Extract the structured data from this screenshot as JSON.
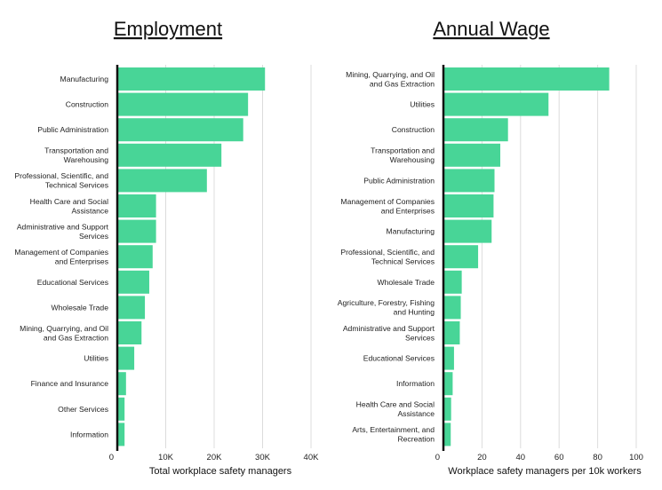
{
  "colors": {
    "bar": "#48d597",
    "grid": "#dcdcdc",
    "axis": "#111111"
  },
  "chart_data": [
    {
      "type": "bar",
      "orientation": "horizontal",
      "title": "Employment",
      "xlabel": "Total workplace safety managers",
      "xlim": [
        0,
        40000
      ],
      "ticks": [
        0,
        10000,
        20000,
        30000,
        40000
      ],
      "tick_labels": [
        "0",
        "10K",
        "20K",
        "30K",
        "40K"
      ],
      "grid": true,
      "categories": [
        [
          "Manufacturing"
        ],
        [
          "Construction"
        ],
        [
          "Public Administration"
        ],
        [
          "Transportation and",
          "Warehousing"
        ],
        [
          "Professional, Scientific, and",
          "Technical Services"
        ],
        [
          "Health Care and Social",
          "Assistance"
        ],
        [
          "Administrative and Support",
          "Services"
        ],
        [
          "Management of Companies",
          "and Enterprises"
        ],
        [
          "Educational Services"
        ],
        [
          "Wholesale Trade"
        ],
        [
          "Mining, Quarrying, and Oil",
          "and Gas Extraction"
        ],
        [
          "Utilities"
        ],
        [
          "Finance and Insurance"
        ],
        [
          "Other Services"
        ],
        [
          "Information"
        ]
      ],
      "values": [
        30500,
        27000,
        26000,
        21500,
        18500,
        8000,
        8000,
        7300,
        6600,
        5700,
        5000,
        3500,
        1800,
        1500,
        1500
      ]
    },
    {
      "type": "bar",
      "orientation": "horizontal",
      "title": "Annual Wage",
      "xlabel": "Workplace safety managers per 10k workers",
      "xlim": [
        0,
        100
      ],
      "ticks": [
        0,
        20,
        40,
        60,
        80,
        100
      ],
      "tick_labels": [
        "0",
        "20",
        "40",
        "60",
        "80",
        "100"
      ],
      "grid": true,
      "categories": [
        [
          "Mining, Quarrying, and Oil",
          "and Gas Extraction"
        ],
        [
          "Utilities"
        ],
        [
          "Construction"
        ],
        [
          "Transportation and",
          "Warehousing"
        ],
        [
          "Public Administration"
        ],
        [
          "Management of Companies",
          "and Enterprises"
        ],
        [
          "Manufacturing"
        ],
        [
          "Professional, Scientific, and",
          "Technical Services"
        ],
        [
          "Wholesale Trade"
        ],
        [
          "Agriculture, Forestry, Fishing",
          "and Hunting"
        ],
        [
          "Administrative and Support",
          "Services"
        ],
        [
          "Educational Services"
        ],
        [
          "Information"
        ],
        [
          "Health Care and Social",
          "Assistance"
        ],
        [
          "Arts, Entertainment, and",
          "Recreation"
        ]
      ],
      "values": [
        86,
        54.5,
        33.5,
        29.5,
        26.5,
        26,
        25,
        18,
        9.5,
        9,
        8.5,
        5.5,
        4.8,
        4,
        3.8
      ]
    }
  ]
}
